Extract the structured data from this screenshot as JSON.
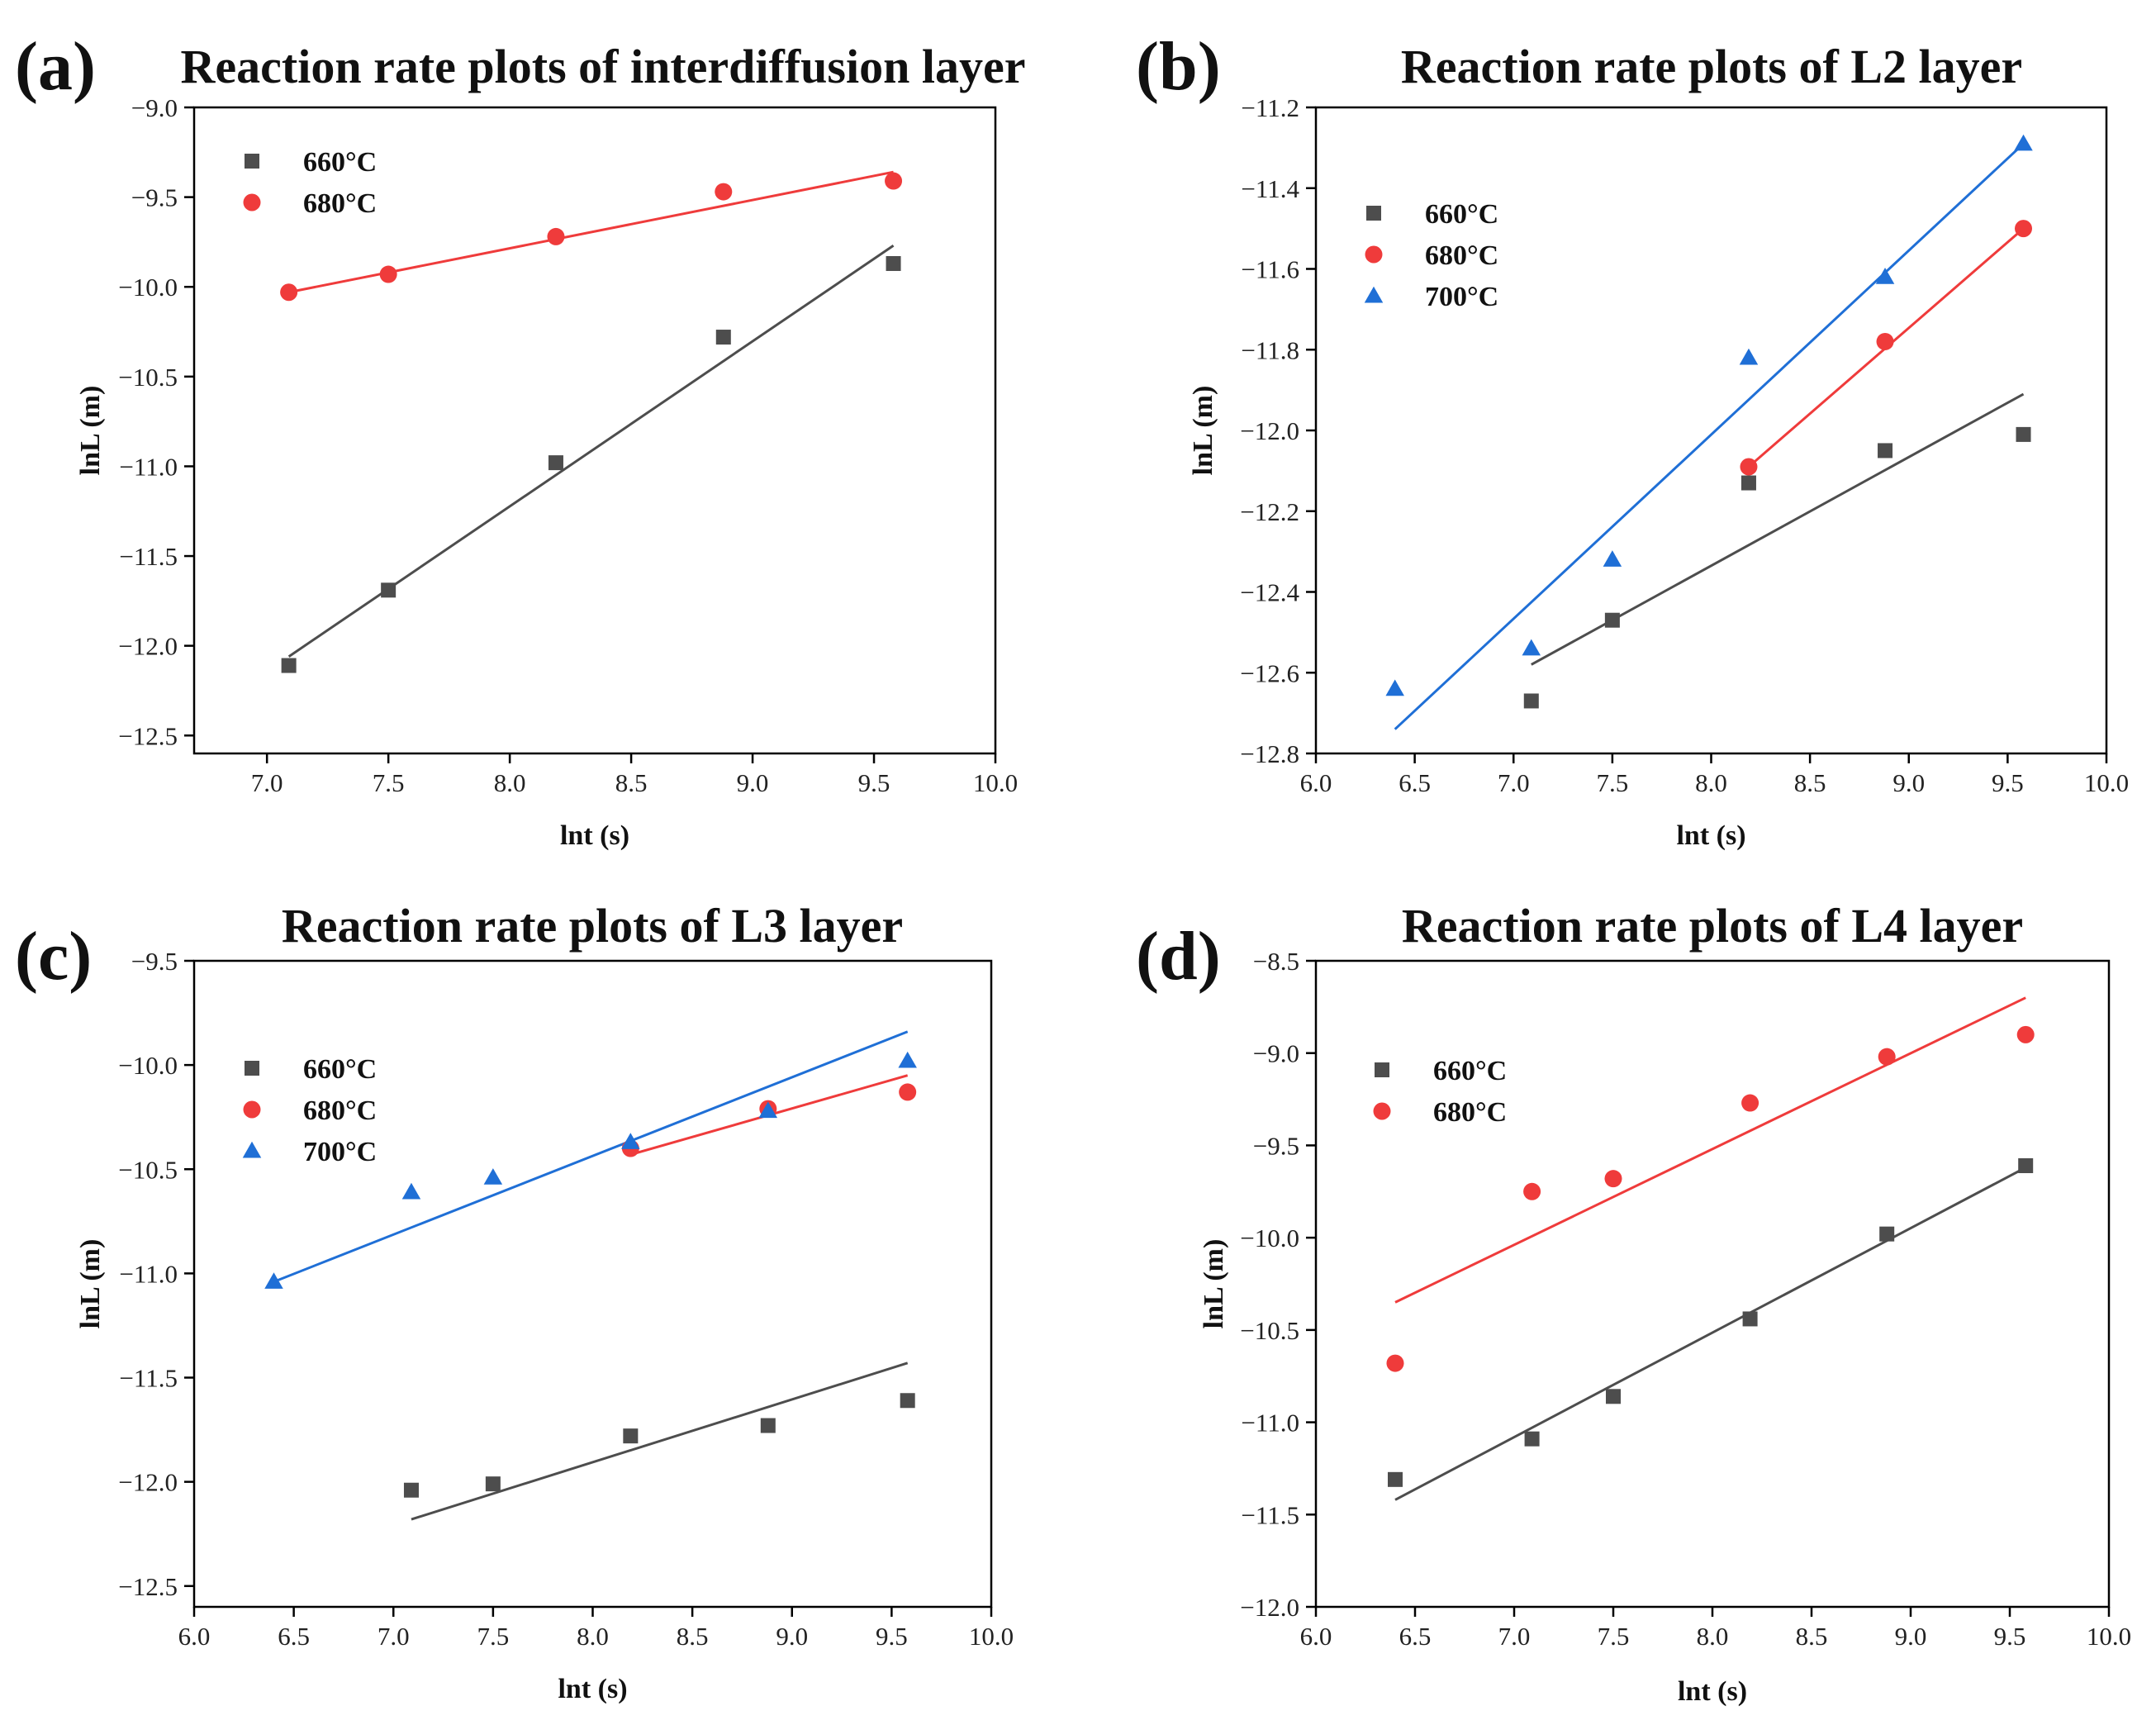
{
  "chart_data": [
    {
      "type": "scatter",
      "panel_label": "(a)",
      "title": "Reaction rate plots of interdiffusion layer",
      "xlabel": "lnt (s)",
      "ylabel": "lnL (m)",
      "xlim": [
        6.7,
        10.0
      ],
      "ylim": [
        -12.6,
        -9.0
      ],
      "xticks": [
        7.0,
        7.5,
        8.0,
        8.5,
        9.0,
        9.5,
        10.0
      ],
      "xtick_labels": [
        "7.0",
        "7.5",
        "8.0",
        "8.5",
        "9.0",
        "9.5",
        "10.0"
      ],
      "yticks": [
        -9.0,
        -9.5,
        -10.0,
        -10.5,
        -11.0,
        -11.5,
        -12.0,
        -12.5
      ],
      "ytick_labels": [
        "−9.0",
        "−9.5",
        "−10.0",
        "−10.5",
        "−11.0",
        "−11.5",
        "−12.0",
        "−12.5"
      ],
      "legend_position": "top-left",
      "series": [
        {
          "name": "660°C",
          "color": "#4d4d4d",
          "marker": "square",
          "x": [
            7.09,
            7.5,
            8.19,
            8.88,
            9.58
          ],
          "y": [
            -12.11,
            -11.69,
            -10.98,
            -10.28,
            -9.87
          ],
          "fit": {
            "x": [
              7.09,
              9.58
            ],
            "y": [
              -12.06,
              -9.77
            ]
          }
        },
        {
          "name": "680°C",
          "color": "#ef3b3b",
          "marker": "circle",
          "x": [
            7.09,
            7.5,
            8.19,
            8.88,
            9.58
          ],
          "y": [
            -10.03,
            -9.93,
            -9.72,
            -9.47,
            -9.41
          ],
          "fit": {
            "x": [
              7.09,
              9.58
            ],
            "y": [
              -10.03,
              -9.36
            ]
          }
        }
      ]
    },
    {
      "type": "scatter",
      "panel_label": "(b)",
      "title": "Reaction rate plots of L2 layer",
      "xlabel": "lnt (s)",
      "ylabel": "lnL (m)",
      "xlim": [
        6.0,
        10.0
      ],
      "ylim": [
        -12.8,
        -11.2
      ],
      "xticks": [
        6.0,
        6.5,
        7.0,
        7.5,
        8.0,
        8.5,
        9.0,
        9.5,
        10.0
      ],
      "xtick_labels": [
        "6.0",
        "6.5",
        "7.0",
        "7.5",
        "8.0",
        "8.5",
        "9.0",
        "9.5",
        "10.0"
      ],
      "yticks": [
        -11.2,
        -11.4,
        -11.6,
        -11.8,
        -12.0,
        -12.2,
        -12.4,
        -12.6,
        -12.8
      ],
      "ytick_labels": [
        "−11.2",
        "−11.4",
        "−11.6",
        "−11.8",
        "−12.0",
        "−12.2",
        "−12.4",
        "−12.6",
        "−12.8"
      ],
      "legend_position": "top-left",
      "series": [
        {
          "name": "660°C",
          "color": "#4d4d4d",
          "marker": "square",
          "x": [
            7.09,
            7.5,
            8.19,
            8.88,
            9.58
          ],
          "y": [
            -12.67,
            -12.47,
            -12.13,
            -12.05,
            -12.01
          ],
          "fit": {
            "x": [
              7.09,
              9.58
            ],
            "y": [
              -12.58,
              -11.91
            ]
          }
        },
        {
          "name": "680°C",
          "color": "#ef3b3b",
          "marker": "circle",
          "x": [
            8.19,
            8.88,
            9.58
          ],
          "y": [
            -12.09,
            -11.78,
            -11.5
          ],
          "fit": {
            "x": [
              8.19,
              9.58
            ],
            "y": [
              -12.09,
              -11.5
            ]
          }
        },
        {
          "name": "700°C",
          "color": "#1f6fd6",
          "marker": "triangle",
          "x": [
            6.4,
            7.09,
            7.5,
            8.19,
            8.88,
            9.58
          ],
          "y": [
            -12.64,
            -12.54,
            -12.32,
            -11.82,
            -11.62,
            -11.29
          ],
          "fit": {
            "x": [
              6.4,
              9.58
            ],
            "y": [
              -12.74,
              -11.29
            ]
          }
        }
      ]
    },
    {
      "type": "scatter",
      "panel_label": "(c)",
      "title": "Reaction rate plots of L3 layer",
      "xlabel": "lnt (s)",
      "ylabel": "lnL (m)",
      "xlim": [
        6.0,
        10.0
      ],
      "ylim": [
        -12.6,
        -9.5
      ],
      "xticks": [
        6.0,
        6.5,
        7.0,
        7.5,
        8.0,
        8.5,
        9.0,
        9.5,
        10.0
      ],
      "xtick_labels": [
        "6.0",
        "6.5",
        "7.0",
        "7.5",
        "8.0",
        "8.5",
        "9.0",
        "9.5",
        "10.0"
      ],
      "yticks": [
        -9.5,
        -10.0,
        -10.5,
        -11.0,
        -11.5,
        -12.0,
        -12.5
      ],
      "ytick_labels": [
        "−9.5",
        "−10.0",
        "−10.5",
        "−11.0",
        "−11.5",
        "−12.0",
        "−12.5"
      ],
      "legend_position": "top-left",
      "series": [
        {
          "name": "660°C",
          "color": "#4d4d4d",
          "marker": "square",
          "x": [
            7.09,
            7.5,
            8.19,
            8.88,
            9.58
          ],
          "y": [
            -12.04,
            -12.01,
            -11.78,
            -11.73,
            -11.61
          ],
          "fit": {
            "x": [
              7.09,
              9.58
            ],
            "y": [
              -12.18,
              -11.43
            ]
          }
        },
        {
          "name": "680°C",
          "color": "#ef3b3b",
          "marker": "circle",
          "x": [
            8.19,
            8.88,
            9.58
          ],
          "y": [
            -10.4,
            -10.21,
            -10.13
          ],
          "fit": {
            "x": [
              8.19,
              9.58
            ],
            "y": [
              -10.43,
              -10.05
            ]
          }
        },
        {
          "name": "700°C",
          "color": "#1f6fd6",
          "marker": "triangle",
          "x": [
            6.4,
            7.09,
            7.5,
            8.19,
            8.88,
            9.58
          ],
          "y": [
            -11.04,
            -10.61,
            -10.54,
            -10.37,
            -10.22,
            -9.98
          ],
          "fit": {
            "x": [
              6.4,
              9.58
            ],
            "y": [
              -11.04,
              -9.84
            ]
          }
        }
      ]
    },
    {
      "type": "scatter",
      "panel_label": "(d)",
      "title": "Reaction rate plots of L4 layer",
      "xlabel": "lnt (s)",
      "ylabel": "lnL (m)",
      "xlim": [
        6.0,
        10.0
      ],
      "ylim": [
        -12.0,
        -8.5
      ],
      "xticks": [
        6.0,
        6.5,
        7.0,
        7.5,
        8.0,
        8.5,
        9.0,
        9.5,
        10.0
      ],
      "xtick_labels": [
        "6.0",
        "6.5",
        "7.0",
        "7.5",
        "8.0",
        "8.5",
        "9.0",
        "9.5",
        "10.0"
      ],
      "yticks": [
        -8.5,
        -9.0,
        -9.5,
        -10.0,
        -10.5,
        -11.0,
        -11.5,
        -12.0
      ],
      "ytick_labels": [
        "−8.5",
        "−9.0",
        "−9.5",
        "−10.0",
        "−10.5",
        "−11.0",
        "−11.5",
        "−12.0"
      ],
      "legend_position": "top-left",
      "series": [
        {
          "name": "660°C",
          "color": "#4d4d4d",
          "marker": "square",
          "x": [
            6.4,
            7.09,
            7.5,
            8.19,
            8.88,
            9.58
          ],
          "y": [
            -11.31,
            -11.09,
            -10.86,
            -10.44,
            -9.98,
            -9.61
          ],
          "fit": {
            "x": [
              6.4,
              9.58
            ],
            "y": [
              -11.42,
              -9.62
            ]
          }
        },
        {
          "name": "680°C",
          "color": "#ef3b3b",
          "marker": "circle",
          "x": [
            6.4,
            7.09,
            7.5,
            8.19,
            8.88,
            9.58
          ],
          "y": [
            -10.68,
            -9.75,
            -9.68,
            -9.27,
            -9.02,
            -8.9
          ],
          "fit": {
            "x": [
              6.4,
              9.58
            ],
            "y": [
              -10.35,
              -8.7
            ]
          }
        }
      ]
    }
  ]
}
